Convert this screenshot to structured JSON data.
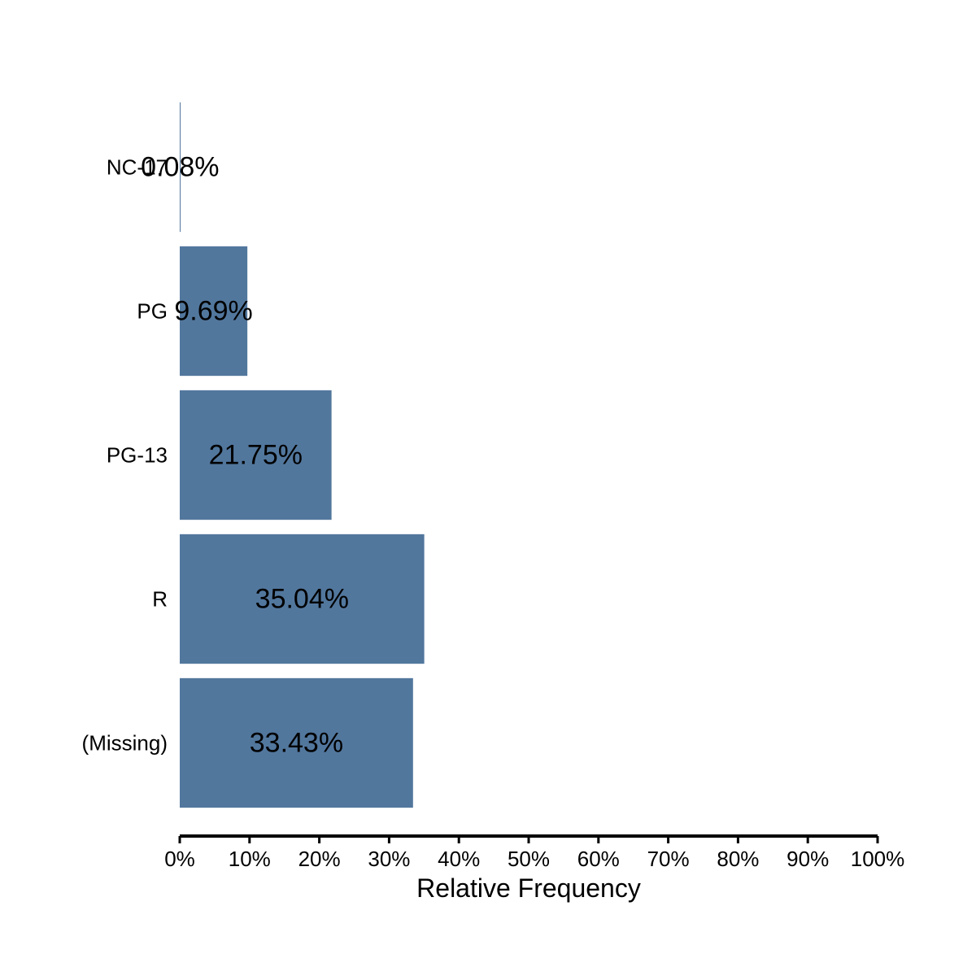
{
  "chart_data": {
    "type": "bar",
    "orientation": "horizontal",
    "title": "",
    "xlabel": "Relative Frequency",
    "ylabel": "",
    "categories": [
      "NC-17",
      "PG",
      "PG-13",
      "R",
      "(Missing)"
    ],
    "values": [
      0.08,
      9.69,
      21.75,
      35.04,
      33.43
    ],
    "data_labels": [
      "0.08%",
      "9.69%",
      "21.75%",
      "35.04%",
      "33.43%"
    ],
    "xlim": [
      0,
      100
    ],
    "x_ticks": [
      "0%",
      "10%",
      "20%",
      "30%",
      "40%",
      "50%",
      "60%",
      "70%",
      "80%",
      "90%",
      "100%"
    ],
    "bar_color": "#52779d",
    "grid": false,
    "legend": "none"
  }
}
